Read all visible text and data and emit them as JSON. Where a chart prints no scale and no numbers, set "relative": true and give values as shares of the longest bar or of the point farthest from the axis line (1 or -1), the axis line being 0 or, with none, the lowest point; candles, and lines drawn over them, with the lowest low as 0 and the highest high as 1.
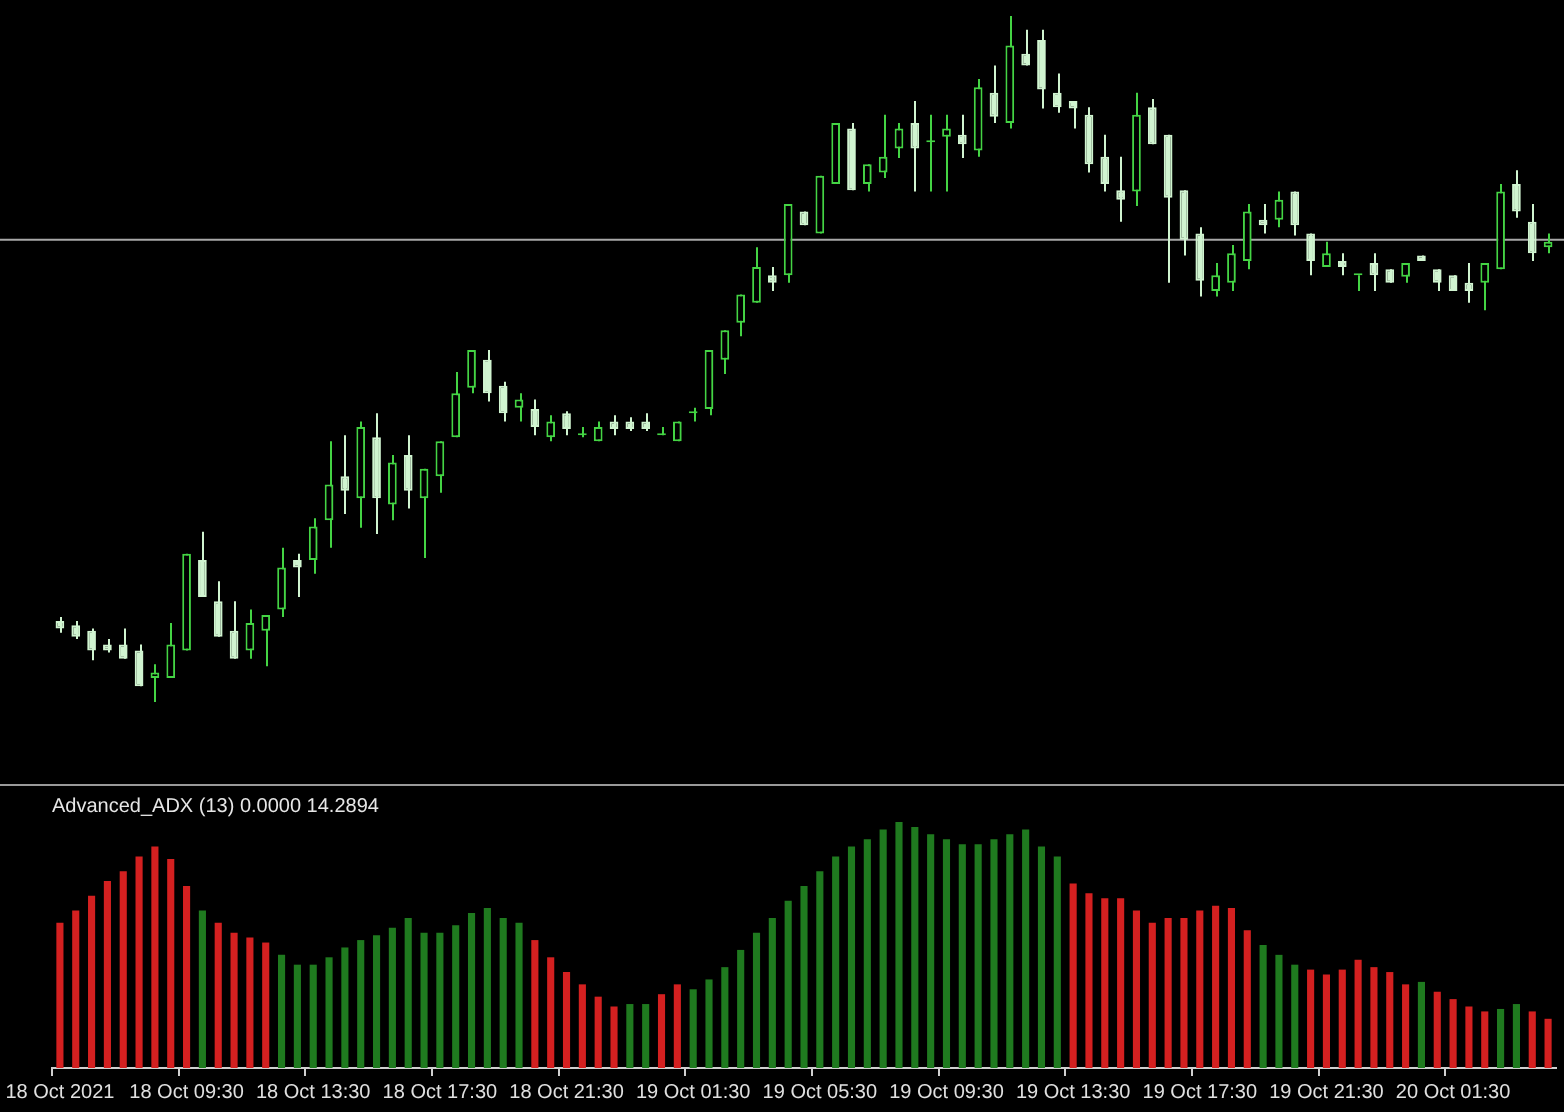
{
  "chart_data": [
    {
      "type": "candlestick",
      "relative": true,
      "tick_labels": false,
      "legend": false,
      "grid": false,
      "colors": [
        "#d0f4d0",
        "#d0f4d0",
        "#d0f4d0",
        "#d0f4d0",
        "#d0f4d0",
        "#d0f4d0",
        "#44d444",
        "#44d444",
        "#44d444",
        "#d0f4d0",
        "#d0f4d0",
        "#d0f4d0",
        "#44d444",
        "#44d444",
        "#44d444",
        "#d0f4d0",
        "#44d444",
        "#44d444",
        "#d0f4d0",
        "#44d444",
        "#d0f4d0",
        "#44d444",
        "#d0f4d0",
        "#44d444",
        "#44d444",
        "#44d444",
        "#44d444",
        "#d0f4d0",
        "#d0f4d0",
        "#44d444",
        "#d0f4d0",
        "#44d444",
        "#d0f4d0",
        "#44d444",
        "#44d444",
        "#d0f4d0",
        "#d0f4d0",
        "#d0f4d0",
        "#44d444",
        "#44d444",
        "#44d444",
        "#44d444",
        "#44d444",
        "#44d444",
        "#44d444",
        "#d0f4d0",
        "#44d444",
        "#d0f4d0",
        "#44d444",
        "#44d444",
        "#d0f4d0",
        "#44d444",
        "#44d444",
        "#44d444",
        "#d0f4d0",
        "#44d444",
        "#44d444",
        "#d0f4d0",
        "#44d444",
        "#d0f4d0",
        "#44d444",
        "#d0f4d0",
        "#d0f4d0",
        "#d0f4d0",
        "#d0f4d0",
        "#d0f4d0",
        "#d0f4d0",
        "#d0f4d0",
        "#44d444",
        "#d0f4d0",
        "#d0f4d0",
        "#d0f4d0",
        "#d0f4d0",
        "#44d444",
        "#44d444",
        "#44d444",
        "#d0f4d0",
        "#44d444",
        "#d0f4d0",
        "#d0f4d0",
        "#44d444",
        "#d0f4d0",
        "#44d444",
        "#d0f4d0",
        "#d0f4d0",
        "#44d444",
        "#d0f4d0",
        "#d0f4d0",
        "#d0f4d0",
        "#d0f4d0",
        "#44d444",
        "#44d444",
        "#d0f4d0",
        "#d0f4d0",
        "#44d444"
      ],
      "ohlc": [
        [
          0.118,
          0.124,
          0.101,
          0.107
        ],
        [
          0.112,
          0.118,
          0.092,
          0.095
        ],
        [
          0.104,
          0.107,
          0.061,
          0.075
        ],
        [
          0.084,
          0.092,
          0.072,
          0.075
        ],
        [
          0.084,
          0.107,
          0.063,
          0.063
        ],
        [
          0.075,
          0.084,
          0.023,
          0.023
        ],
        [
          0.035,
          0.055,
          0,
          0.043
        ],
        [
          0.035,
          0.115,
          0.035,
          0.084
        ],
        [
          0.075,
          0.216,
          0.075,
          0.216
        ],
        [
          0.207,
          0.248,
          0.153,
          0.153
        ],
        [
          0.147,
          0.176,
          0.095,
          0.095
        ],
        [
          0.104,
          0.147,
          0.063,
          0.063
        ],
        [
          0.075,
          0.135,
          0.063,
          0.115
        ],
        [
          0.104,
          0.127,
          0.052,
          0.127
        ],
        [
          0.135,
          0.225,
          0.124,
          0.196
        ],
        [
          0.207,
          0.216,
          0.153,
          0.196
        ],
        [
          0.207,
          0.268,
          0.187,
          0.256
        ],
        [
          0.265,
          0.38,
          0.225,
          0.317
        ],
        [
          0.329,
          0.389,
          0.274,
          0.308
        ],
        [
          0.297,
          0.409,
          0.254,
          0.401
        ],
        [
          0.386,
          0.421,
          0.245,
          0.297
        ],
        [
          0.288,
          0.36,
          0.265,
          0.349
        ],
        [
          0.36,
          0.389,
          0.282,
          0.308
        ],
        [
          0.297,
          0.34,
          0.21,
          0.34
        ],
        [
          0.329,
          0.38,
          0.305,
          0.38
        ],
        [
          0.386,
          0.481,
          0.386,
          0.45
        ],
        [
          0.458,
          0.513,
          0.45,
          0.513
        ],
        [
          0.499,
          0.513,
          0.438,
          0.45
        ],
        [
          0.461,
          0.467,
          0.409,
          0.421
        ],
        [
          0.429,
          0.45,
          0.409,
          0.441
        ],
        [
          0.427,
          0.441,
          0.389,
          0.401
        ],
        [
          0.386,
          0.418,
          0.38,
          0.409
        ],
        [
          0.421,
          0.424,
          0.389,
          0.398
        ],
        [
          0.389,
          0.401,
          0.386,
          0.389
        ],
        [
          0.38,
          0.409,
          0.38,
          0.401
        ],
        [
          0.409,
          0.418,
          0.389,
          0.398
        ],
        [
          0.409,
          0.415,
          0.395,
          0.398
        ],
        [
          0.409,
          0.421,
          0.395,
          0.398
        ],
        [
          0.389,
          0.401,
          0.389,
          0.389
        ],
        [
          0.38,
          0.409,
          0.38,
          0.409
        ],
        [
          0.421,
          0.429,
          0.409,
          0.421
        ],
        [
          0.427,
          0.513,
          0.418,
          0.513
        ],
        [
          0.499,
          0.542,
          0.478,
          0.542
        ],
        [
          0.553,
          0.594,
          0.533,
          0.594
        ],
        [
          0.582,
          0.663,
          0.582,
          0.634
        ],
        [
          0.622,
          0.634,
          0.599,
          0.611
        ],
        [
          0.622,
          0.726,
          0.611,
          0.726
        ],
        [
          0.715,
          0.715,
          0.695,
          0.695
        ],
        [
          0.683,
          0.767,
          0.683,
          0.767
        ],
        [
          0.755,
          0.844,
          0.755,
          0.844
        ],
        [
          0.836,
          0.844,
          0.746,
          0.746
        ],
        [
          0.755,
          0.784,
          0.744,
          0.784
        ],
        [
          0.772,
          0.856,
          0.764,
          0.795
        ],
        [
          0.807,
          0.844,
          0.793,
          0.836
        ],
        [
          0.844,
          0.876,
          0.744,
          0.807
        ],
        [
          0.816,
          0.856,
          0.744,
          0.816
        ],
        [
          0.824,
          0.856,
          0.744,
          0.836
        ],
        [
          0.827,
          0.856,
          0.793,
          0.813
        ],
        [
          0.804,
          0.908,
          0.795,
          0.896
        ],
        [
          0.888,
          0.928,
          0.844,
          0.853
        ],
        [
          0.844,
          1,
          0.836,
          0.957
        ],
        [
          0.945,
          0.98,
          0.928,
          0.928
        ],
        [
          0.965,
          0.98,
          0.865,
          0.893
        ],
        [
          0.888,
          0.916,
          0.859,
          0.867
        ],
        [
          0.876,
          0.876,
          0.836,
          0.865
        ],
        [
          0.856,
          0.867,
          0.772,
          0.784
        ],
        [
          0.795,
          0.827,
          0.744,
          0.755
        ],
        [
          0.746,
          0.795,
          0.7,
          0.732
        ],
        [
          0.744,
          0.888,
          0.723,
          0.856
        ],
        [
          0.867,
          0.879,
          0.813,
          0.813
        ],
        [
          0.827,
          0.827,
          0.611,
          0.735
        ],
        [
          0.746,
          0.746,
          0.651,
          0.674
        ],
        [
          0.683,
          0.692,
          0.591,
          0.614
        ],
        [
          0.599,
          0.64,
          0.591,
          0.622
        ],
        [
          0.611,
          0.666,
          0.599,
          0.654
        ],
        [
          0.643,
          0.726,
          0.631,
          0.715
        ],
        [
          0.703,
          0.726,
          0.683,
          0.695
        ],
        [
          0.703,
          0.744,
          0.692,
          0.732
        ],
        [
          0.744,
          0.744,
          0.68,
          0.695
        ],
        [
          0.683,
          0.683,
          0.622,
          0.643
        ],
        [
          0.634,
          0.671,
          0.634,
          0.654
        ],
        [
          0.643,
          0.654,
          0.622,
          0.634
        ],
        [
          0.622,
          0.622,
          0.599,
          0.622
        ],
        [
          0.64,
          0.654,
          0.599,
          0.622
        ],
        [
          0.631,
          0.631,
          0.611,
          0.611
        ],
        [
          0.62,
          0.64,
          0.611,
          0.64
        ],
        [
          0.651,
          0.651,
          0.643,
          0.643
        ],
        [
          0.631,
          0.631,
          0.599,
          0.611
        ],
        [
          0.622,
          0.622,
          0.599,
          0.599
        ],
        [
          0.611,
          0.64,
          0.582,
          0.599
        ],
        [
          0.611,
          0.64,
          0.571,
          0.64
        ],
        [
          0.631,
          0.755,
          0.631,
          0.744
        ],
        [
          0.755,
          0.775,
          0.706,
          0.715
        ],
        [
          0.7,
          0.726,
          0.643,
          0.654
        ],
        [
          0.663,
          0.683,
          0.654,
          0.671
        ]
      ],
      "ref_lines": [
        {
          "axis": "y",
          "value": 0.674,
          "color": "#a8a8a8"
        }
      ]
    },
    {
      "type": "bar",
      "relative": true,
      "title": "Advanced_ADX (13) 0.0000 14.2894",
      "legend": false,
      "grid": false,
      "categories": [
        "18 Oct 2021",
        null,
        null,
        null,
        null,
        null,
        null,
        null,
        "18 Oct 09:30",
        null,
        null,
        null,
        null,
        null,
        null,
        null,
        "18 Oct 13:30",
        null,
        null,
        null,
        null,
        null,
        null,
        null,
        "18 Oct 17:30",
        null,
        null,
        null,
        null,
        null,
        null,
        null,
        "18 Oct 21:30",
        null,
        null,
        null,
        null,
        null,
        null,
        null,
        "19 Oct 01:30",
        null,
        null,
        null,
        null,
        null,
        null,
        null,
        "19 Oct 05:30",
        null,
        null,
        null,
        null,
        null,
        null,
        null,
        "19 Oct 09:30",
        null,
        null,
        null,
        null,
        null,
        null,
        null,
        "19 Oct 13:30",
        null,
        null,
        null,
        null,
        null,
        null,
        null,
        "19 Oct 17:30",
        null,
        null,
        null,
        null,
        null,
        null,
        null,
        "19 Oct 21:30",
        null,
        null,
        null,
        null,
        null,
        null,
        null,
        "20 Oct 01:30",
        null,
        null,
        null,
        null,
        null,
        null
      ],
      "values": [
        0.59,
        0.64,
        0.7,
        0.76,
        0.8,
        0.86,
        0.9,
        0.85,
        0.74,
        0.64,
        0.59,
        0.55,
        0.53,
        0.51,
        0.46,
        0.42,
        0.42,
        0.45,
        0.49,
        0.52,
        0.54,
        0.57,
        0.61,
        0.55,
        0.55,
        0.58,
        0.63,
        0.65,
        0.61,
        0.59,
        0.52,
        0.45,
        0.39,
        0.34,
        0.29,
        0.25,
        0.26,
        0.26,
        0.3,
        0.34,
        0.32,
        0.36,
        0.41,
        0.48,
        0.55,
        0.61,
        0.68,
        0.74,
        0.8,
        0.86,
        0.9,
        0.93,
        0.97,
        1,
        0.98,
        0.95,
        0.93,
        0.91,
        0.91,
        0.93,
        0.95,
        0.97,
        0.9,
        0.86,
        0.75,
        0.71,
        0.69,
        0.69,
        0.64,
        0.59,
        0.61,
        0.61,
        0.64,
        0.66,
        0.65,
        0.56,
        0.5,
        0.46,
        0.42,
        0.4,
        0.38,
        0.4,
        0.44,
        0.41,
        0.39,
        0.34,
        0.35,
        0.31,
        0.28,
        0.25,
        0.23,
        0.24,
        0.26,
        0.23,
        0.2
      ],
      "colors": [
        "#d42020",
        "#d42020",
        "#d42020",
        "#d42020",
        "#d42020",
        "#d42020",
        "#d42020",
        "#d42020",
        "#d42020",
        "#1f7a1f",
        "#d42020",
        "#d42020",
        "#d42020",
        "#d42020",
        "#1f7a1f",
        "#1f7a1f",
        "#1f7a1f",
        "#1f7a1f",
        "#1f7a1f",
        "#1f7a1f",
        "#1f7a1f",
        "#1f7a1f",
        "#1f7a1f",
        "#1f7a1f",
        "#1f7a1f",
        "#1f7a1f",
        "#1f7a1f",
        "#1f7a1f",
        "#1f7a1f",
        "#1f7a1f",
        "#d42020",
        "#d42020",
        "#d42020",
        "#d42020",
        "#d42020",
        "#d42020",
        "#1f7a1f",
        "#1f7a1f",
        "#d42020",
        "#d42020",
        "#1f7a1f",
        "#1f7a1f",
        "#1f7a1f",
        "#1f7a1f",
        "#1f7a1f",
        "#1f7a1f",
        "#1f7a1f",
        "#1f7a1f",
        "#1f7a1f",
        "#1f7a1f",
        "#1f7a1f",
        "#1f7a1f",
        "#1f7a1f",
        "#1f7a1f",
        "#1f7a1f",
        "#1f7a1f",
        "#1f7a1f",
        "#1f7a1f",
        "#1f7a1f",
        "#1f7a1f",
        "#1f7a1f",
        "#1f7a1f",
        "#1f7a1f",
        "#1f7a1f",
        "#d42020",
        "#d42020",
        "#d42020",
        "#d42020",
        "#d42020",
        "#d42020",
        "#d42020",
        "#d42020",
        "#d42020",
        "#d42020",
        "#d42020",
        "#d42020",
        "#1f7a1f",
        "#1f7a1f",
        "#1f7a1f",
        "#d42020",
        "#d42020",
        "#d42020",
        "#d42020",
        "#d42020",
        "#d42020",
        "#d42020",
        "#1f7a1f",
        "#d42020",
        "#d42020",
        "#d42020",
        "#d42020",
        "#1f7a1f",
        "#1f7a1f",
        "#d42020",
        "#d42020"
      ]
    }
  ]
}
